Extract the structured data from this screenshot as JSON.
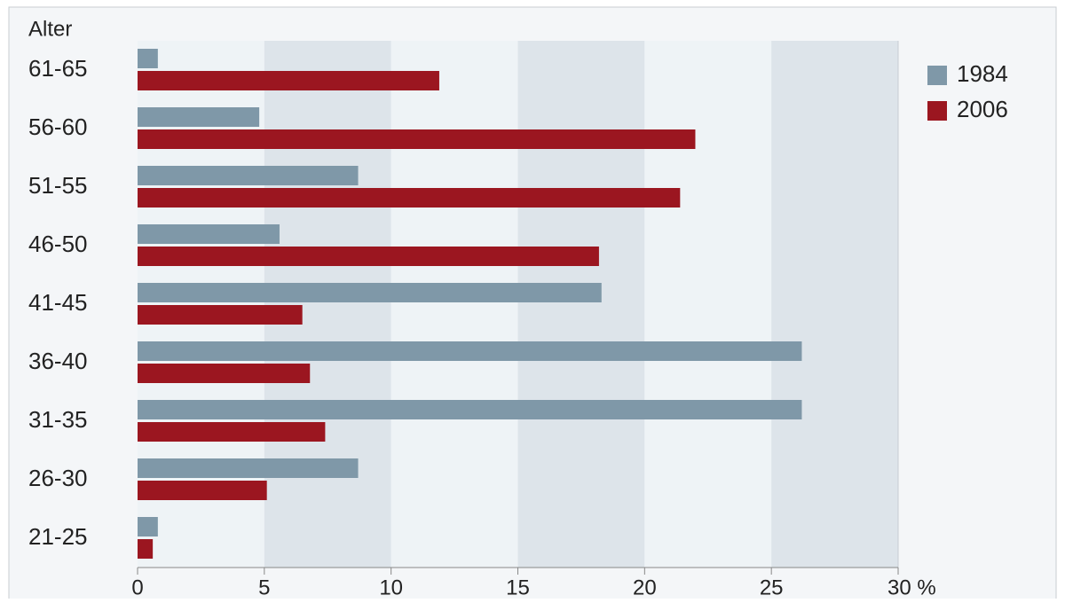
{
  "chart_data": {
    "type": "hbar",
    "y_label": "Alter",
    "categories": [
      "61-65",
      "56-60",
      "51-55",
      "46-50",
      "41-45",
      "36-40",
      "31-35",
      "26-30",
      "21-25"
    ],
    "series": [
      {
        "name": "1984",
        "color": "#7f98a8",
        "values": [
          0.8,
          4.8,
          8.7,
          5.6,
          18.3,
          26.2,
          26.2,
          8.7,
          0.8
        ]
      },
      {
        "name": "2006",
        "color": "#9b1620",
        "values": [
          11.9,
          22.0,
          21.4,
          18.2,
          6.5,
          6.8,
          7.4,
          5.1,
          0.6
        ]
      }
    ],
    "xlim": [
      0,
      30
    ],
    "xticks": [
      0,
      5,
      10,
      15,
      20,
      25,
      {
        "value": 30,
        "label": "30 %"
      }
    ],
    "bands": [
      "#eef3f6",
      "#dde4ea"
    ],
    "legend": "top-right"
  }
}
